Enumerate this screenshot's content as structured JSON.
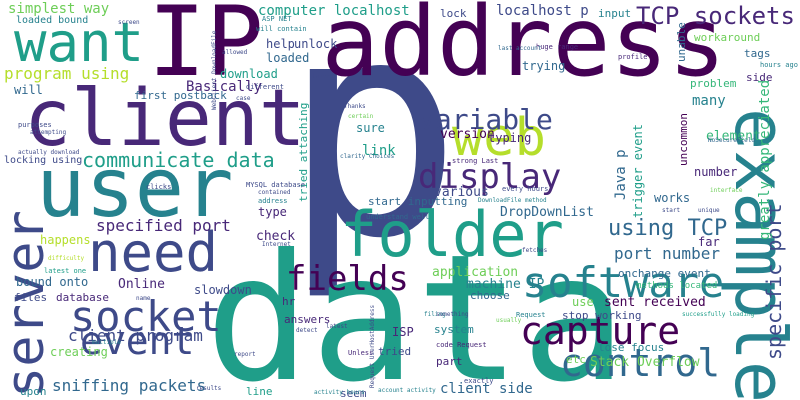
{
  "words": {
    "p": "p",
    "data": "data",
    "ip_address": "IP address",
    "user": "user",
    "client": "client",
    "example": "example",
    "folder": "folder",
    "need": "need",
    "want": "want",
    "server": "server",
    "web": "web",
    "software": "software",
    "socket": "socket",
    "capture": "capture",
    "control": "control",
    "event": "event",
    "fields": "fields",
    "display": "display",
    "variable": "variable",
    "tcp_sockets": "TCP sockets",
    "communicate_data": "communicate data",
    "using_tcp": "using TCP",
    "specific_port": "specific port",
    "program_using": "program using",
    "client_program": "client program",
    "specified_port": "specified port",
    "sniffing_packets": "sniffing packets",
    "simplest_way": "simplest way",
    "computer_localhost": "computer localhost",
    "localhost_p": "localhost p",
    "port_number": "port number",
    "client_side": "client side",
    "many": "many",
    "java_p": "Java p",
    "greatly_appreciated": "greatly appreciated",
    "dropdownlist": "DropDownList",
    "stack_overflow": "Stack Overflow",
    "trigger_event": "trigger event",
    "sent_received": "sent received",
    "machine_ip": "machine IP",
    "application": "application",
    "creating": "creating",
    "download": "download",
    "first_postback": "first postback",
    "basically": "Basically",
    "tried_attaching": "tried attaching",
    "link": "link",
    "sure": "sure",
    "version": "version",
    "typing": "typing",
    "trying": "trying",
    "various": "various",
    "start_inputting": "start inputting",
    "check": "check",
    "type": "type",
    "online": "Online",
    "slowdown": "slowdown",
    "files": "files",
    "database": "database",
    "bound_onto": "bound onto",
    "happens": "happens",
    "will": "will",
    "help": "help",
    "unlock": "unlock",
    "loaded": "loaded",
    "loaded_bound": "loaded bound",
    "element": "element",
    "number": "number",
    "works": "works",
    "far": "far",
    "onchange_event": "onchange event",
    "workaround": "workaround",
    "tags": "tags",
    "side": "side",
    "problem": "problem",
    "unable": "unable",
    "uncommon": "uncommon",
    "input": "input",
    "lock": "lock",
    "use": "use",
    "stop_working": "stop working",
    "lose_focus": "lose focus",
    "etc": "etc",
    "system": "system",
    "isp": "ISP",
    "tried": "tried",
    "part": "part",
    "seem": "seem",
    "line": "line",
    "upon": "upon",
    "answers": "answers",
    "choose": "choose",
    "methods_located": "methods located",
    "locking_using": "locking using",
    "hr": "hr",
    "asp_net": "ASP NET",
    "will_contain": "will contain",
    "screen": "screen",
    "huge_range": "huge range",
    "last_account": "last account",
    "profile": "profile",
    "hours_ago": "hours ago",
    "mysql_database": "MYSQL database",
    "address": "address",
    "strong_last": "strong Last",
    "every_hours": "every hours",
    "downloadfile_method": "DownloadFile method",
    "understand_well": "understand well",
    "unless": "Unless",
    "request": "Request",
    "code_request": "code Request",
    "exactly": "exactly",
    "account_activity": "account activity",
    "activity_hours": "activity hours",
    "successfully_loading": "successfully loading",
    "latest_one": "latest one",
    "difficulty": "difficulty",
    "purposes": "purposes",
    "attempting": "attempting",
    "actually_download": "actually download",
    "clicks": "clicks",
    "thanks": "Thanks",
    "certain": "certain",
    "clarity_choices": "clarity Choices",
    "multiple": "multiple",
    "name": "name",
    "report": "report",
    "detect": "detect",
    "latest": "latest",
    "filing": "filing",
    "something": "something",
    "usually": "usually",
    "results": "results",
    "internet": "Internet",
    "fetches": "fetches",
    "different": "different",
    "allowed": "allowed",
    "webclient_downloadfile": "WebClient DownloadFile",
    "case": "case",
    "later": "later",
    "unique": "unique",
    "start": "start",
    "contained": "contained",
    "nosecurefield": "NoSecureField",
    "interface": "interface",
    "request_useraddress": "Request UserHostAddress"
  },
  "colors": [
    "#440154",
    "#482878",
    "#3e4a89",
    "#31688e",
    "#26828e",
    "#1f9e89",
    "#35b779",
    "#6ece58",
    "#b5de2b"
  ]
}
